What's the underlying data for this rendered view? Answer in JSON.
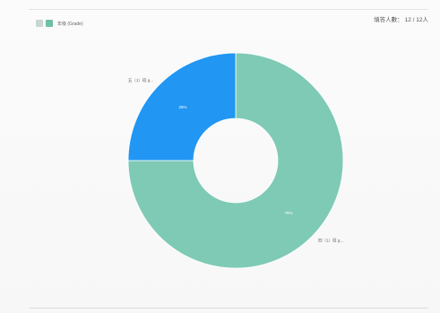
{
  "header": {
    "respondents_label": "填答人數：",
    "respondents_value": "12 / 12人"
  },
  "legend": {
    "text": "年级 (Grade)"
  },
  "colors": {
    "teal": "#7fcab5",
    "blue": "#2196f3",
    "legend_grey": "#c9d6d3",
    "legend_teal": "#6fbfa8"
  },
  "chart_data": {
    "type": "pie",
    "donut": true,
    "categories": [
      "四（1）班 g...",
      "五（1）班 g..."
    ],
    "values": [
      9,
      3
    ],
    "percent_labels": [
      "75%",
      "25%"
    ],
    "title": "",
    "legend_placement": "top-left"
  }
}
